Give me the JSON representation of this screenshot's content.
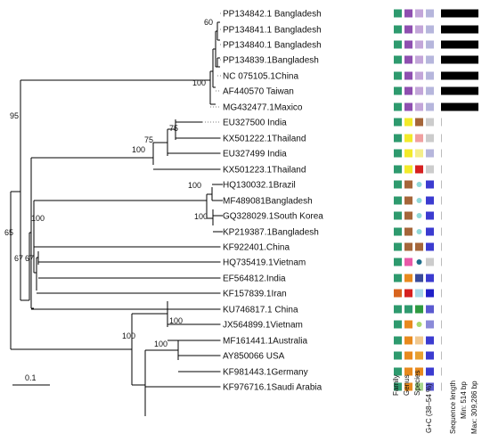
{
  "taxa": [
    {
      "label": "PP134842.1 Bangladesh",
      "family": "#2e9a6e",
      "genus": "#8e4fb0",
      "species": "#c3a6d9",
      "gc": "#b6b6dc",
      "seq_fraction": 1.0
    },
    {
      "label": "PP134841.1 Bangladesh",
      "family": "#2e9a6e",
      "genus": "#8e4fb0",
      "species": "#c3a6d9",
      "gc": "#b6b6dc",
      "seq_fraction": 1.0
    },
    {
      "label": "PP134840.1 Bangladesh",
      "family": "#2e9a6e",
      "genus": "#8e4fb0",
      "species": "#c3a6d9",
      "gc": "#b6b6dc",
      "seq_fraction": 1.0
    },
    {
      "label": "PP134839.1Bangladesh",
      "family": "#2e9a6e",
      "genus": "#8e4fb0",
      "species": "#c3a6d9",
      "gc": "#b6b6dc",
      "seq_fraction": 1.0
    },
    {
      "label": "NC 075105.1China",
      "family": "#2e9a6e",
      "genus": "#8e4fb0",
      "species": "#c3a6d9",
      "gc": "#b6b6dc",
      "seq_fraction": 1.0
    },
    {
      "label": "AF440570 Taiwan",
      "family": "#2e9a6e",
      "genus": "#8e4fb0",
      "species": "#c3a6d9",
      "gc": "#b6b6dc",
      "seq_fraction": 1.0
    },
    {
      "label": "MG432477.1Maxico",
      "family": "#2e9a6e",
      "genus": "#8e4fb0",
      "species": "#c3a6d9",
      "gc": "#b6b6dc",
      "seq_fraction": 1.0
    },
    {
      "label": "EU327500 India",
      "family": "#2e9a6e",
      "genus": "#f2ea2a",
      "species": "#a5663a",
      "gc": "#cccccc",
      "seq_fraction": 0.0
    },
    {
      "label": "KX501222.1Thailand",
      "family": "#2e9a6e",
      "genus": "#f2ea2a",
      "species": "#f0a0a0",
      "gc": "#cccccc",
      "seq_fraction": 0.0
    },
    {
      "label": "EU327499 India",
      "family": "#2e9a6e",
      "genus": "#f2ea2a",
      "species": "#f4ee8a",
      "gc": "#b6b6dc",
      "seq_fraction": 0.0
    },
    {
      "label": "KX501223.1Thailand",
      "family": "#2e9a6e",
      "genus": "#f2ea2a",
      "species": "#d62020",
      "gc": "#cccccc",
      "seq_fraction": 0.0
    },
    {
      "label": "HQ130032.1Brazil",
      "family": "#2e9a6e",
      "genus": "#a5663a",
      "species": "dot:#8fd8d8",
      "gc": "#3b3bd0",
      "seq_fraction": 0.0
    },
    {
      "label": "MF489081Bangladesh",
      "family": "#2e9a6e",
      "genus": "#a5663a",
      "species": "dot:#8fd8d8",
      "gc": "#3b3bd0",
      "seq_fraction": 0.0
    },
    {
      "label": "GQ328029.1South Korea",
      "family": "#2e9a6e",
      "genus": "#a5663a",
      "species": "dot:#8fd8d8",
      "gc": "#3b3bd0",
      "seq_fraction": 0.0
    },
    {
      "label": "KP219387.1Bangladesh",
      "family": "#2e9a6e",
      "genus": "#a5663a",
      "species": "dot:#8fd8d8",
      "gc": "#3b3bd0",
      "seq_fraction": 0.0
    },
    {
      "label": "KF922401.China",
      "family": "#2e9a6e",
      "genus": "#a5663a",
      "species": "#a5663a",
      "gc": "#3b3bd0",
      "seq_fraction": 0.0
    },
    {
      "label": "HQ735419.1Vietnam",
      "family": "#2e9a6e",
      "genus": "#e85aa8",
      "species": "dot:#1e6e8a",
      "gc": "#cccccc",
      "seq_fraction": 0.0
    },
    {
      "label": "EF564812.India",
      "family": "#2e9a6e",
      "genus": "#e88a1e",
      "species": "#3a4a9a",
      "gc": "#3b3bd0",
      "seq_fraction": 0.0
    },
    {
      "label": "KF157839.1Iran",
      "family": "#d8641e",
      "genus": "#d62020",
      "species": "#a8d8e8",
      "gc": "#2020c8",
      "seq_fraction": 0.0
    },
    {
      "label": "KU746817.1 China",
      "family": "#2e9a6e",
      "genus": "#2e9a6e",
      "species": "#2e9a40",
      "gc": "#5a5ad0",
      "seq_fraction": 0.0
    },
    {
      "label": "JX564899.1Vietnam",
      "family": "#2e9a6e",
      "genus": "#e88a1e",
      "species": "dot:#a8d870",
      "gc": "#8a8ad8",
      "seq_fraction": 0.0
    },
    {
      "label": "MF161441.1Australia",
      "family": "#2e9a6e",
      "genus": "#e88a1e",
      "species": "#f0c890",
      "gc": "#3b3bd0",
      "seq_fraction": 0.0
    },
    {
      "label": "AY850066 USA",
      "family": "#2e9a6e",
      "genus": "#e88a1e",
      "species": "#e8a030",
      "gc": "#3b3bd0",
      "seq_fraction": 0.0
    },
    {
      "label": "KF981443.1Germany",
      "family": "#2e9a6e",
      "genus": "#e88a1e",
      "species": "#e88a1e",
      "gc": "#3b3bd0",
      "seq_fraction": 0.0
    },
    {
      "label": "KF976716.1Saudi Arabia",
      "family": "#2e9a6e",
      "genus": "#e88a1e",
      "species": "#a8d890",
      "gc": "#5a5ad0",
      "seq_fraction": 0.0
    }
  ],
  "supports": [
    "60",
    "100",
    "95",
    "75",
    "75",
    "100",
    "100",
    "100",
    "100",
    "67",
    "67",
    "65",
    "100",
    "100",
    "100"
  ],
  "scale_label": "0.1",
  "columns": {
    "family": "Family",
    "genus": "Genus",
    "species": "Species",
    "gc": "G+C (38–54 %)",
    "seq": "Sequence length",
    "seq_min": "Min: 514 bp",
    "seq_max": "Max: 309,286 bp"
  }
}
